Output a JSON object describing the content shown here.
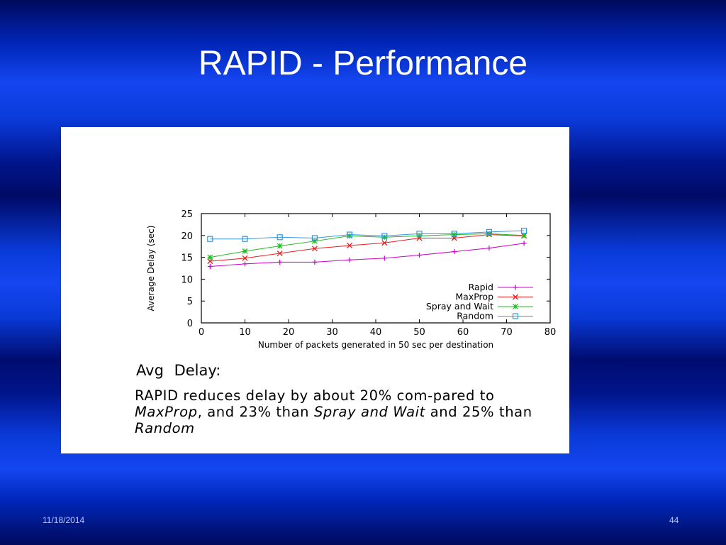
{
  "slide": {
    "title": "RAPID - Performance",
    "date": "11/18/2014",
    "page_number": "44"
  },
  "caption": {
    "heading_label": "Avg",
    "heading_value": "Delay:",
    "text": {
      "part1": "RAPID reduces delay by about 20% com-pared to ",
      "maxprop": "MaxProp",
      "part2": ", and 23% than ",
      "spray": "Spray and Wait",
      "part3": " and 25% than ",
      "random": "Random"
    }
  },
  "colors": {
    "background_accent": "#1446f0",
    "rapid": "#cc00cc",
    "maxprop": "#e81e1e",
    "spray": "#22bb22",
    "random": "#3399dd"
  },
  "chart_data": {
    "type": "line",
    "xlabel": "Number of packets generated in 50 sec per destination",
    "ylabel": "Average Delay (sec)",
    "xlim": [
      0,
      80
    ],
    "ylim": [
      0,
      25
    ],
    "xticks": [
      0,
      10,
      20,
      30,
      40,
      50,
      60,
      70,
      80
    ],
    "yticks": [
      0,
      5,
      10,
      15,
      20,
      25
    ],
    "legend_position": "bottom-right",
    "grid": false,
    "x": [
      2,
      10,
      18,
      26,
      34,
      42,
      50,
      58,
      66,
      74
    ],
    "series": [
      {
        "name": "Rapid",
        "color": "#cc00cc",
        "marker": "plus",
        "values": [
          12.9,
          13.5,
          13.9,
          13.9,
          14.4,
          14.8,
          15.5,
          16.3,
          17.1,
          18.2
        ]
      },
      {
        "name": "MaxProp",
        "color": "#e81e1e",
        "marker": "x",
        "values": [
          14.1,
          14.8,
          15.9,
          17.0,
          17.7,
          18.3,
          19.4,
          19.4,
          20.2,
          19.9
        ]
      },
      {
        "name": "Spray and Wait",
        "color": "#22bb22",
        "marker": "star",
        "values": [
          15.0,
          16.4,
          17.6,
          18.7,
          19.9,
          19.6,
          19.9,
          20.2,
          20.4,
          20.0
        ]
      },
      {
        "name": "Random",
        "color": "#3399dd",
        "marker": "square",
        "values": [
          19.2,
          19.2,
          19.6,
          19.4,
          20.2,
          19.9,
          20.4,
          20.4,
          20.8,
          21.1
        ]
      }
    ]
  }
}
